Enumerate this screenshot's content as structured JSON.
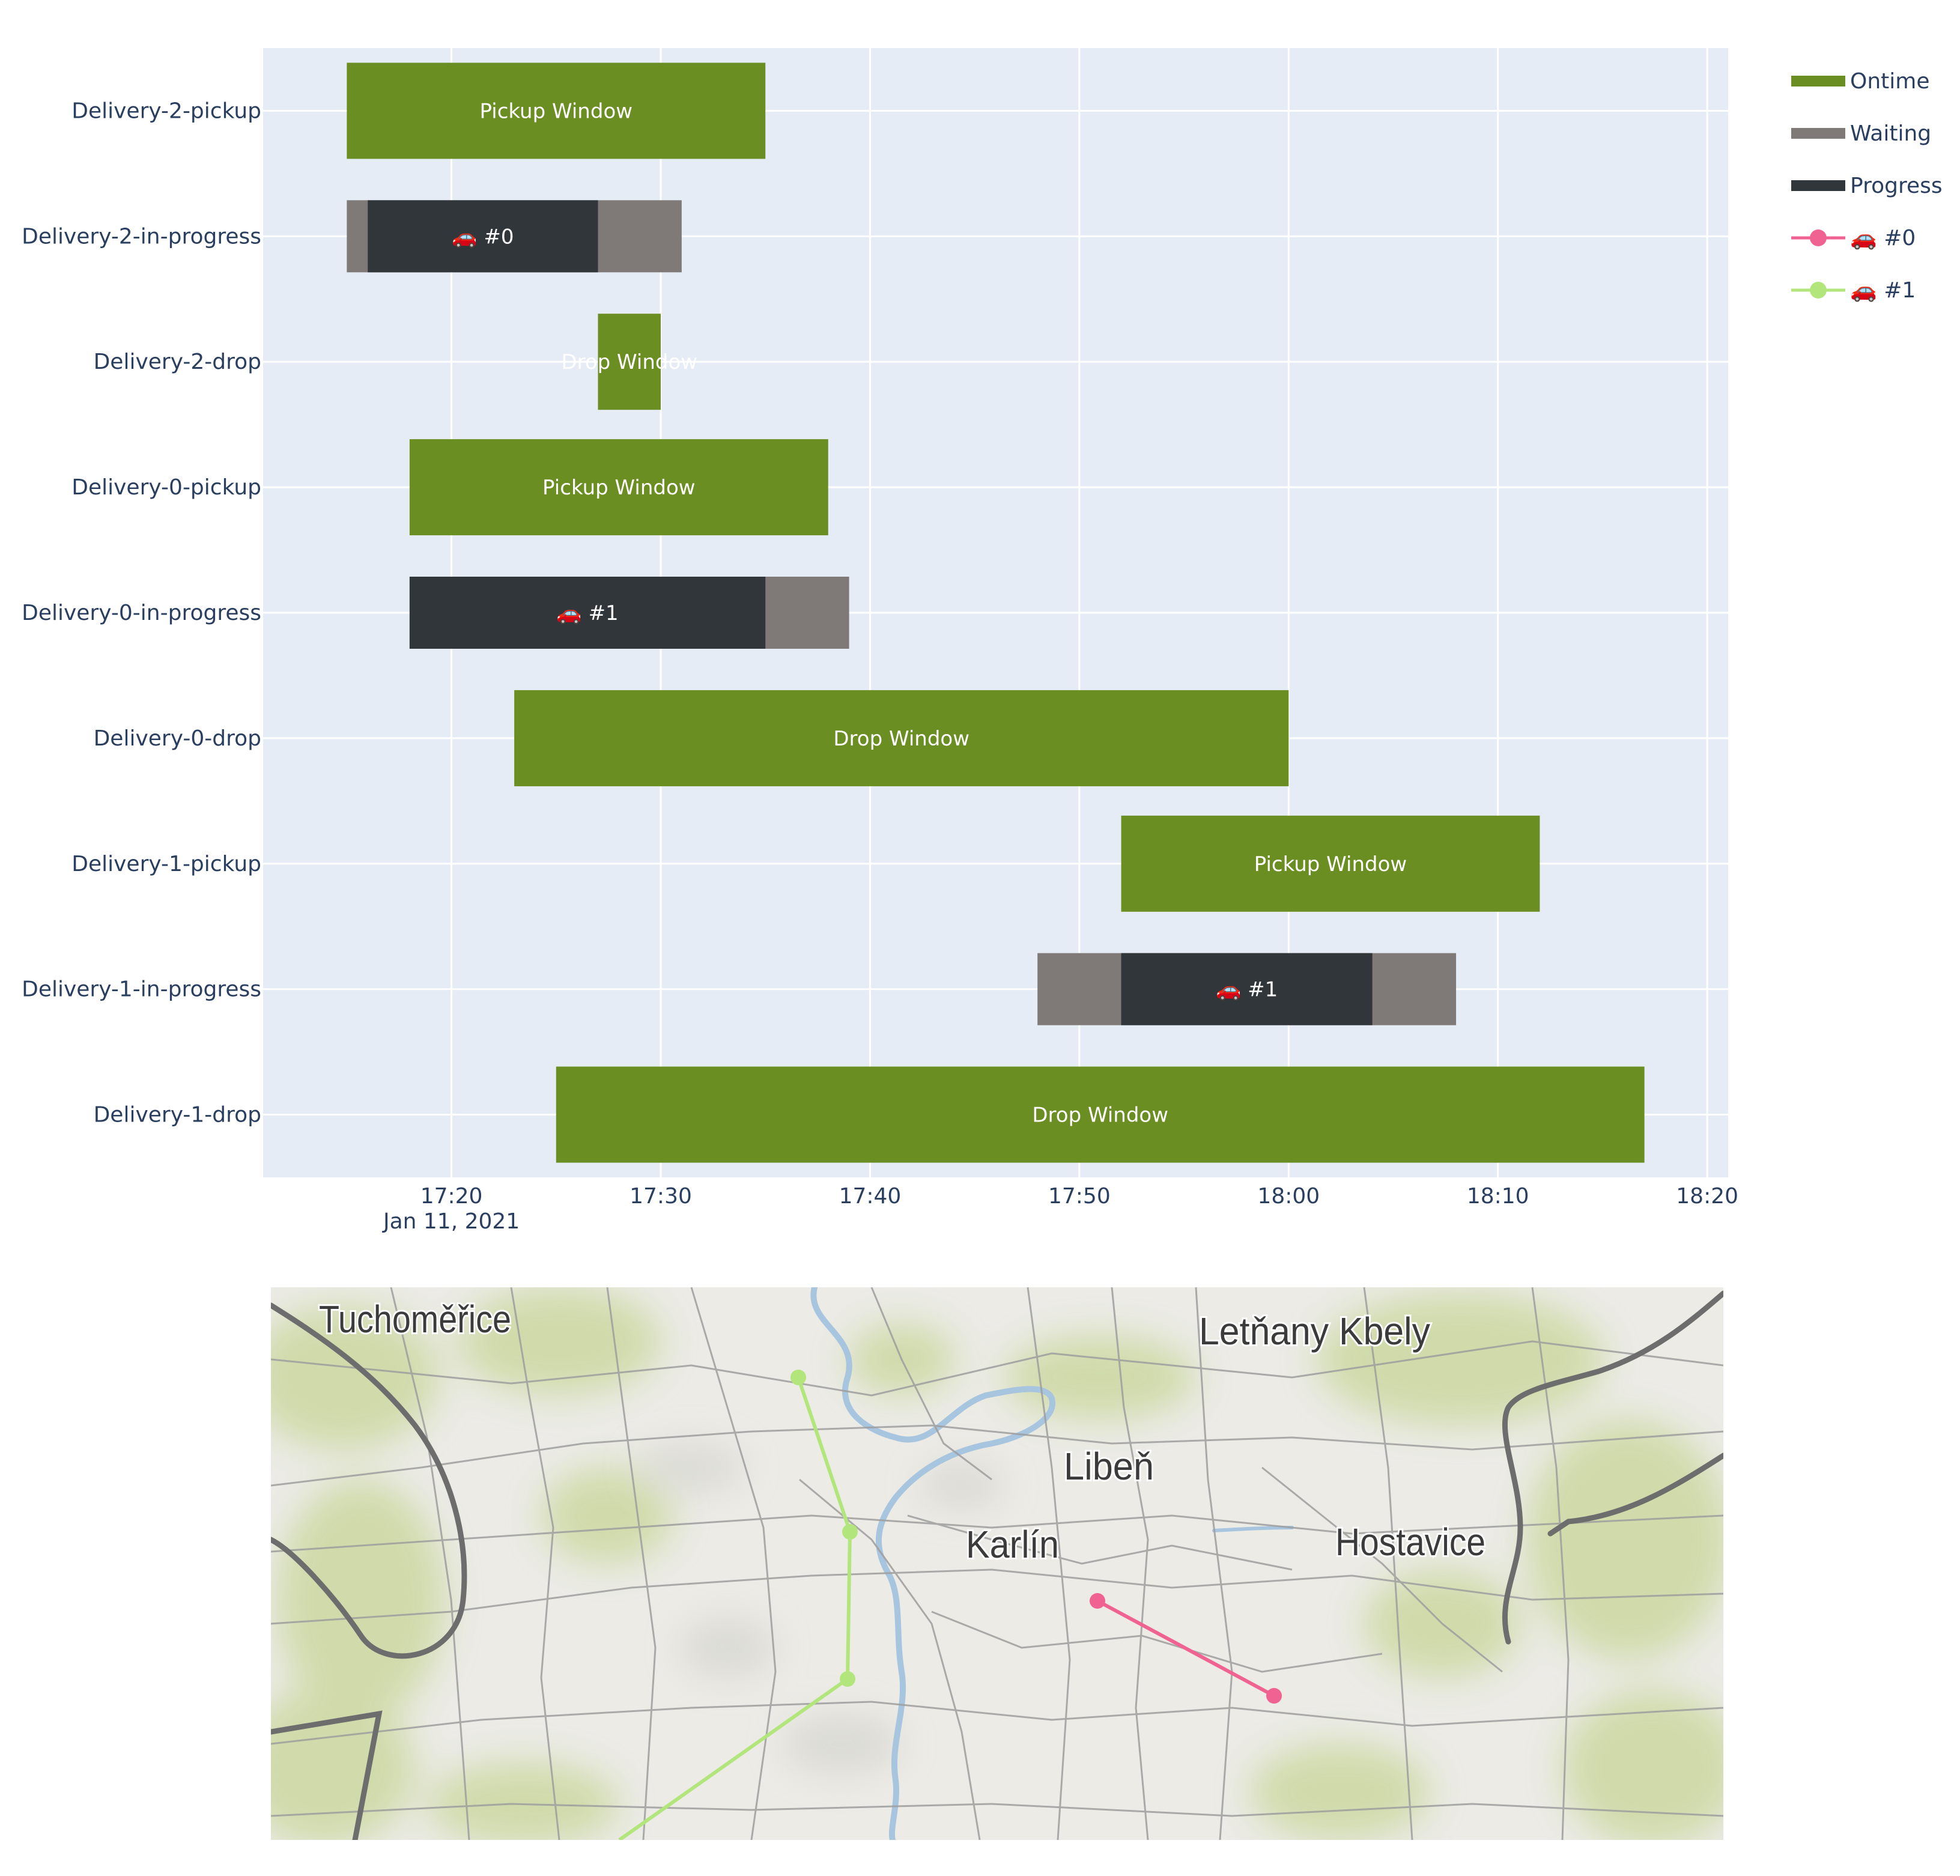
{
  "chart_data": {
    "type": "gantt",
    "date": "Jan 11, 2021",
    "xlim": [
      "17:11:00",
      "18:21:00"
    ],
    "x_ticks": [
      "17:20",
      "17:30",
      "17:40",
      "17:50",
      "18:00",
      "18:10",
      "18:20"
    ],
    "x_tick_date_label": "Jan 11, 2021",
    "grid": true,
    "legend_position": "top-right",
    "rows": [
      "Delivery-2-pickup",
      "Delivery-2-in-progress",
      "Delivery-2-drop",
      "Delivery-0-pickup",
      "Delivery-0-in-progress",
      "Delivery-0-drop",
      "Delivery-1-pickup",
      "Delivery-1-in-progress",
      "Delivery-1-drop"
    ],
    "bars": [
      {
        "row": "Delivery-2-pickup",
        "start": "17:15:00",
        "end": "17:35:00",
        "type": "Ontime",
        "label": "Pickup Window",
        "size": "full"
      },
      {
        "row": "Delivery-2-in-progress",
        "start": "17:15:00",
        "end": "17:31:00",
        "type": "Waiting",
        "label": "",
        "size": "thin"
      },
      {
        "row": "Delivery-2-in-progress",
        "start": "17:16:00",
        "end": "17:27:00",
        "type": "Progress",
        "label": "🚗 #0",
        "size": "thin"
      },
      {
        "row": "Delivery-2-drop",
        "start": "17:27:00",
        "end": "17:30:00",
        "type": "Ontime",
        "label": "Drop Window",
        "size": "full"
      },
      {
        "row": "Delivery-0-pickup",
        "start": "17:18:00",
        "end": "17:38:00",
        "type": "Ontime",
        "label": "Pickup Window",
        "size": "full"
      },
      {
        "row": "Delivery-0-in-progress",
        "start": "17:18:00",
        "end": "17:39:00",
        "type": "Waiting",
        "label": "",
        "size": "thin"
      },
      {
        "row": "Delivery-0-in-progress",
        "start": "17:18:00",
        "end": "17:35:00",
        "type": "Progress",
        "label": "🚗 #1",
        "size": "thin"
      },
      {
        "row": "Delivery-0-drop",
        "start": "17:23:00",
        "end": "18:00:00",
        "type": "Ontime",
        "label": "Drop Window",
        "size": "full"
      },
      {
        "row": "Delivery-1-pickup",
        "start": "17:52:00",
        "end": "18:12:00",
        "type": "Ontime",
        "label": "Pickup Window",
        "size": "full"
      },
      {
        "row": "Delivery-1-in-progress",
        "start": "17:48:00",
        "end": "18:08:00",
        "type": "Waiting",
        "label": "",
        "size": "thin"
      },
      {
        "row": "Delivery-1-in-progress",
        "start": "17:52:00",
        "end": "18:04:00",
        "type": "Progress",
        "label": "🚗 #1",
        "size": "thin"
      },
      {
        "row": "Delivery-1-drop",
        "start": "17:25:00",
        "end": "18:17:00",
        "type": "Ontime",
        "label": "Drop Window",
        "size": "full"
      }
    ],
    "legend": [
      {
        "name": "Ontime",
        "kind": "bar",
        "color": "#6b8e23"
      },
      {
        "name": "Waiting",
        "kind": "bar",
        "color": "#7f7a77"
      },
      {
        "name": "Progress",
        "kind": "bar",
        "color": "#31363b"
      },
      {
        "name": "🚗 #0",
        "kind": "route",
        "color": "#f06292"
      },
      {
        "name": "🚗 #1",
        "kind": "route",
        "color": "#b2e67c"
      }
    ],
    "colors": {
      "plot_bg": "#e5ecf6",
      "grid": "#ffffff",
      "tick_text": "#2a3f5f",
      "bar_text": "#ffffff"
    }
  },
  "map": {
    "place_labels": [
      "Tuchoměřice",
      "Letňany Kbely",
      "Libeň",
      "Karlín",
      "Hostavice"
    ],
    "routes": [
      {
        "name": "🚗 #0",
        "color": "#f06292"
      },
      {
        "name": "🚗 #1",
        "color": "#b2e67c"
      }
    ],
    "colors": {
      "land": "#ecebe6",
      "vegetation": "#cdd9a4",
      "water": "#a7c5de",
      "roads": "#9e9e9e",
      "highway": "#6d6d6d",
      "label": "#3b3b3b"
    }
  }
}
